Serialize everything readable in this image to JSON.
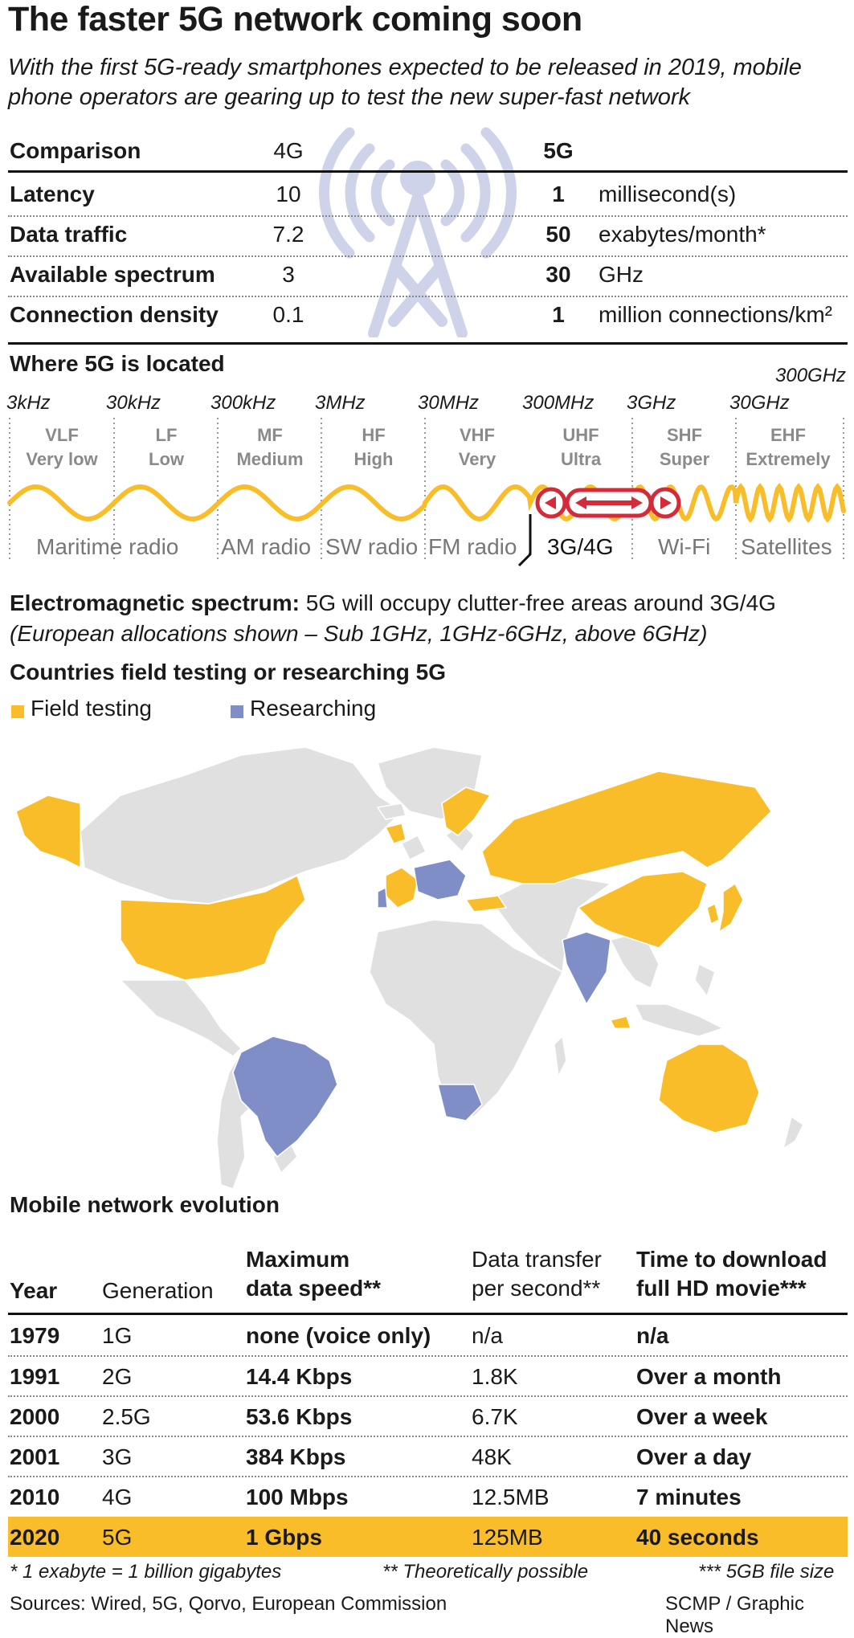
{
  "title": "The faster 5G network coming soon",
  "subtitle": "With the first 5G-ready smartphones expected to be released in 2019, mobile phone operators are gearing up to test the new super-fast network",
  "comparison": {
    "header": [
      "Comparison",
      "4G",
      "5G",
      ""
    ],
    "rows": [
      {
        "label": "Latency",
        "g4": "10",
        "g5": "1",
        "unit": "millisecond(s)"
      },
      {
        "label": "Data traffic",
        "g4": "7.2",
        "g5": "50",
        "unit": "exabytes/month*"
      },
      {
        "label": "Available spectrum",
        "g4": "3",
        "g5": "30",
        "unit": "GHz"
      },
      {
        "label": "Connection density",
        "g4": "0.1",
        "g5": "1",
        "unit": "million connections/km²"
      }
    ]
  },
  "spectrum": {
    "title": "Where 5G is located",
    "frequencies": [
      "3kHz",
      "30kHz",
      "300kHz",
      "3MHz",
      "30MHz",
      "300MHz",
      "3GHz",
      "30GHz",
      "300GHz"
    ],
    "bands": [
      {
        "code": "VLF",
        "name": "Very low"
      },
      {
        "code": "LF",
        "name": "Low"
      },
      {
        "code": "MF",
        "name": "Medium"
      },
      {
        "code": "HF",
        "name": "High"
      },
      {
        "code": "VHF",
        "name": "Very"
      },
      {
        "code": "UHF",
        "name": "Ultra"
      },
      {
        "code": "SHF",
        "name": "Super"
      },
      {
        "code": "EHF",
        "name": "Extremely"
      }
    ],
    "uses": [
      "Maritime radio",
      "AM radio",
      "SW radio",
      "FM radio",
      "3G/4G",
      "Wi-Fi",
      "Satellites"
    ],
    "caption_bold": "Electromagnetic spectrum:",
    "caption": "5G will occupy clutter-free areas around 3G/4G",
    "caption_italic": "(European allocations shown – Sub 1GHz, 1GHz-6GHz, above 6GHz)",
    "colors": {
      "wave": "#f9bd2a",
      "marker": "#d42a3a"
    }
  },
  "map": {
    "title": "Countries field testing or researching 5G",
    "legend": [
      {
        "label": "Field testing",
        "color": "#f9bd2a"
      },
      {
        "label": "Researching",
        "color": "#7f8ec6"
      }
    ],
    "land_color": "#e0e0e0"
  },
  "evolution": {
    "title": "Mobile network evolution",
    "headers": {
      "year": "Year",
      "generation": "Generation",
      "speed_1": "Maximum",
      "speed_2": "data speed**",
      "transfer_1": "Data transfer",
      "transfer_2": "per second**",
      "download_1": "Time to download",
      "download_2": "full HD movie***"
    },
    "rows": [
      {
        "year": "1979",
        "gen": "1G",
        "speed": "none (voice only)",
        "transfer": "n/a",
        "download": "n/a"
      },
      {
        "year": "1991",
        "gen": "2G",
        "speed": "14.4 Kbps",
        "transfer": "1.8K",
        "download": "Over a month"
      },
      {
        "year": "2000",
        "gen": "2.5G",
        "speed": "53.6 Kbps",
        "transfer": "6.7K",
        "download": "Over a week"
      },
      {
        "year": "2001",
        "gen": "3G",
        "speed": "384 Kbps",
        "transfer": "48K",
        "download": "Over a day"
      },
      {
        "year": "2010",
        "gen": "4G",
        "speed": "100 Mbps",
        "transfer": "12.5MB",
        "download": "7 minutes"
      },
      {
        "year": "2020",
        "gen": "5G",
        "speed": "1 Gbps",
        "transfer": "125MB",
        "download": "40 seconds"
      }
    ],
    "highlight_color": "#f9bd2a"
  },
  "footnotes": {
    "n1": "* 1 exabyte = 1 billion gigabytes",
    "n2": "** Theoretically possible",
    "n3": "*** 5GB file size"
  },
  "sources": "Sources: Wired, 5G, Qorvo, European Commission",
  "credit": "SCMP / Graphic News"
}
